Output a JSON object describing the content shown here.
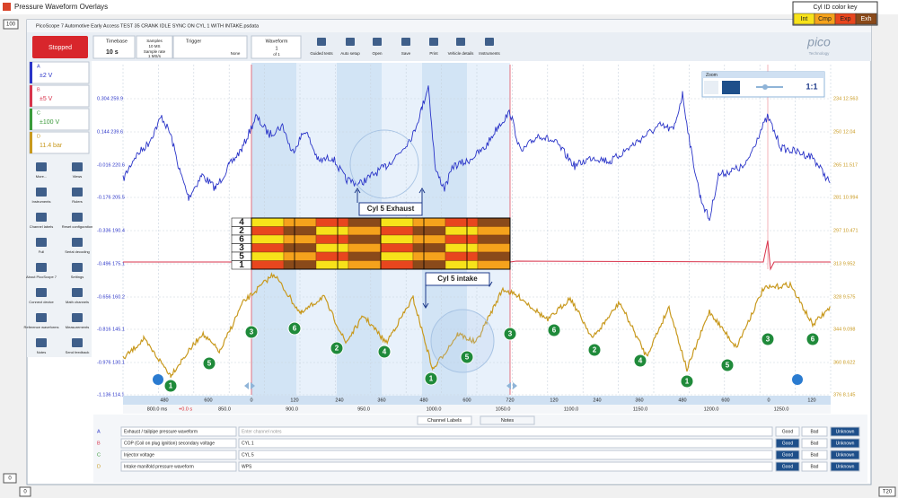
{
  "window": {
    "title": "Pressure Waveform Overlays",
    "corner_top_left": "100",
    "corner_bottom_left": "0",
    "corner_bottom_left_2": "0",
    "corner_bottom_right": "T20"
  },
  "color_key": {
    "title": "Cyl ID color key",
    "items": [
      {
        "label": "Int",
        "color": "#f7e21a"
      },
      {
        "label": "Cmp",
        "color": "#f5a21c"
      },
      {
        "label": "Exp",
        "color": "#e8461e"
      },
      {
        "label": "Exh",
        "color": "#8a4a1a"
      }
    ]
  },
  "app": {
    "file_title": "PicoScope 7 Automotive Early Access TEST 35 CRANK IDLE SYNC ON CYL 1 WITH INTAKE.psdata",
    "status": "Stopped",
    "logo": "pico",
    "logo_sub": "Technology"
  },
  "toolbar": {
    "timebase_label": "Timebase",
    "timebase": "10 s",
    "samples_label": "Samples",
    "samples": "10 MS",
    "sample_rate_label": "Sample rate",
    "sample_rate": "1 MS/s",
    "trigger_label": "Trigger",
    "trigger": "None",
    "waveform_label": "Waveform",
    "waveform": "1",
    "waveform_of": "of 1",
    "buttons": [
      "Guided tests",
      "Auto setup",
      "Open",
      "Save",
      "Print",
      "Vehicle details",
      "Instruments"
    ]
  },
  "channels": [
    {
      "letter": "A",
      "range": "±2 V",
      "color": "#2a34c8"
    },
    {
      "letter": "B",
      "range": "±5 V",
      "color": "#d8344c"
    },
    {
      "letter": "C",
      "range": "±100 V",
      "color": "#3a9a3a"
    },
    {
      "letter": "D",
      "range": "11.4 bar",
      "color": "#c8991e"
    }
  ],
  "sidebar": [
    "More...",
    "Views",
    "Instruments",
    "Rulers",
    "Channel labels",
    "Reset configuration",
    "Full",
    "Serial decoding",
    "About PicoScope 7",
    "Settings",
    "Connect device",
    "Math channels",
    "Reference waveforms",
    "Measurements",
    "Notes",
    "Send feedback"
  ],
  "zoom": {
    "title": "Zoom",
    "ratio": "1:1"
  },
  "plot": {
    "left_axis": [
      "0.304 259.9",
      "0.144 239.6",
      "-0.016 220.6",
      "-0.176 205.5",
      "-0.336 190.4",
      "-0.496 175.1",
      "-0.656 160.2",
      "-0.816 145.1",
      "-0.976 130.1",
      "-1.136 114.1"
    ],
    "right_axis": [
      "234 12.563",
      "250 12.04",
      "265 11.517",
      "281 10.994",
      "297 10.471",
      "313 9.952",
      "328 9.575",
      "344 9.098",
      "360 8.622",
      "376 8.145"
    ],
    "annotations": {
      "exhaust": "Cyl 5 Exhaust",
      "intake": "Cyl 5 intake"
    },
    "cylinder_rows": [
      "4",
      "2",
      "6",
      "3",
      "5",
      "1"
    ],
    "firing_markers": [
      "1",
      "5",
      "3",
      "6",
      "2",
      "4",
      "1",
      "5",
      "3",
      "6",
      "2",
      "4",
      "1",
      "5",
      "3",
      "6"
    ],
    "degree_ruler": [
      "480",
      "600",
      "0",
      "120",
      "240",
      "360",
      "480",
      "600",
      "720",
      "120",
      "240",
      "360",
      "480",
      "600",
      "0",
      "120"
    ],
    "time_ruler": [
      "800.0 ms",
      "850.0",
      "900.0",
      "950.0",
      "1000.0",
      "1050.0",
      "1100.0",
      "1150.0",
      "1200.0",
      "1250.0"
    ],
    "time_offset": "+0.0 s"
  },
  "tabs": [
    "Channel Labels",
    "Notes"
  ],
  "channel_table": {
    "buttons": [
      "Good",
      "Bad",
      "Unknown"
    ],
    "rows": [
      {
        "letter": "A",
        "name": "Exhaust / tailpipe pressure waveform",
        "note": "Enter channel notes"
      },
      {
        "letter": "B",
        "name": "COP (Coil on plug ignition) secondary voltage",
        "note": "CYL 1"
      },
      {
        "letter": "C",
        "name": "Injector voltage",
        "note": "CYL 5"
      },
      {
        "letter": "D",
        "name": "Intake manifold pressure waveform",
        "note": "WPS"
      }
    ]
  }
}
